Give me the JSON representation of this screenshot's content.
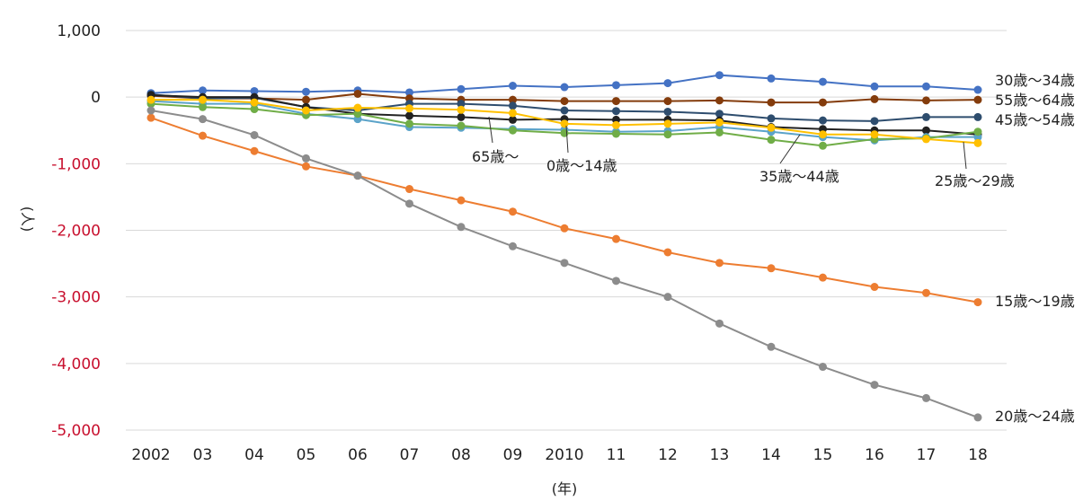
{
  "chart_data": {
    "type": "line",
    "title": "",
    "xlabel": "(年)",
    "ylabel": "(人)",
    "ylim": [
      -5000,
      1000
    ],
    "yticks": [
      1000,
      0,
      -1000,
      -2000,
      -3000,
      -4000,
      -5000
    ],
    "ytick_labels": [
      "1,000",
      "0",
      "-1,000",
      "-2,000",
      "-3,000",
      "-4,000",
      "-5,000"
    ],
    "negative_tick_color": "#c8102e",
    "positive_tick_color": "#222222",
    "grid": true,
    "categories": [
      "2002",
      "03",
      "04",
      "05",
      "06",
      "07",
      "08",
      "09",
      "2010",
      "11",
      "12",
      "13",
      "14",
      "15",
      "16",
      "17",
      "18"
    ],
    "series": [
      {
        "name": "30歳〜34歳",
        "color": "#4472c4",
        "label_pos": "right",
        "values": [
          60,
          100,
          90,
          80,
          100,
          70,
          120,
          170,
          150,
          180,
          210,
          330,
          280,
          230,
          160,
          160,
          110
        ]
      },
      {
        "name": "55歳〜64歳",
        "color": "#843c0c",
        "label_pos": "right",
        "values": [
          20,
          -20,
          -20,
          -40,
          50,
          -20,
          -40,
          -40,
          -60,
          -60,
          -60,
          -50,
          -80,
          -80,
          -30,
          -50,
          -40
        ]
      },
      {
        "name": "45歳〜54歳",
        "color": "#2e4d6e",
        "label_pos": "right",
        "values": [
          40,
          -20,
          -10,
          -150,
          -200,
          -100,
          -100,
          -130,
          -200,
          -210,
          -220,
          -250,
          -320,
          -350,
          -360,
          -300,
          -300
        ]
      },
      {
        "name": "65歳〜",
        "color": "#222222",
        "label_pos": "callout",
        "values": [
          30,
          0,
          0,
          -150,
          -250,
          -280,
          -300,
          -340,
          -330,
          -340,
          -340,
          -350,
          -450,
          -480,
          -500,
          -500,
          -560
        ]
      },
      {
        "name": "0歳〜14歳",
        "color": "#5ba3c9",
        "label_pos": "callout",
        "values": [
          -60,
          -100,
          -100,
          -250,
          -330,
          -450,
          -460,
          -480,
          -490,
          -520,
          -510,
          -450,
          -520,
          -600,
          -650,
          -600,
          -600
        ]
      },
      {
        "name": "35歳〜44歳",
        "color": "#70ad47",
        "label_pos": "callout",
        "values": [
          -100,
          -150,
          -180,
          -270,
          -250,
          -400,
          -430,
          -500,
          -540,
          -550,
          -560,
          -530,
          -640,
          -730,
          -630,
          -620,
          -520
        ]
      },
      {
        "name": "25歳〜29歳",
        "color": "#ffc000",
        "label_pos": "callout",
        "values": [
          -40,
          -40,
          -80,
          -200,
          -160,
          -170,
          -190,
          -240,
          -400,
          -420,
          -400,
          -380,
          -460,
          -560,
          -560,
          -630,
          -690
        ]
      },
      {
        "name": "15歳〜19歳",
        "color": "#ed7d31",
        "label_pos": "right",
        "values": [
          -310,
          -580,
          -810,
          -1040,
          -1180,
          -1380,
          -1550,
          -1720,
          -1970,
          -2130,
          -2330,
          -2490,
          -2570,
          -2710,
          -2850,
          -2940,
          -3080
        ]
      },
      {
        "name": "20歳〜24歳",
        "color": "#8c8c8c",
        "label_pos": "right",
        "values": [
          -200,
          -330,
          -570,
          -920,
          -1180,
          -1600,
          -1950,
          -2240,
          -2490,
          -2760,
          -3000,
          -3400,
          -3750,
          -4050,
          -4320,
          -4520,
          -4810
        ]
      }
    ]
  }
}
